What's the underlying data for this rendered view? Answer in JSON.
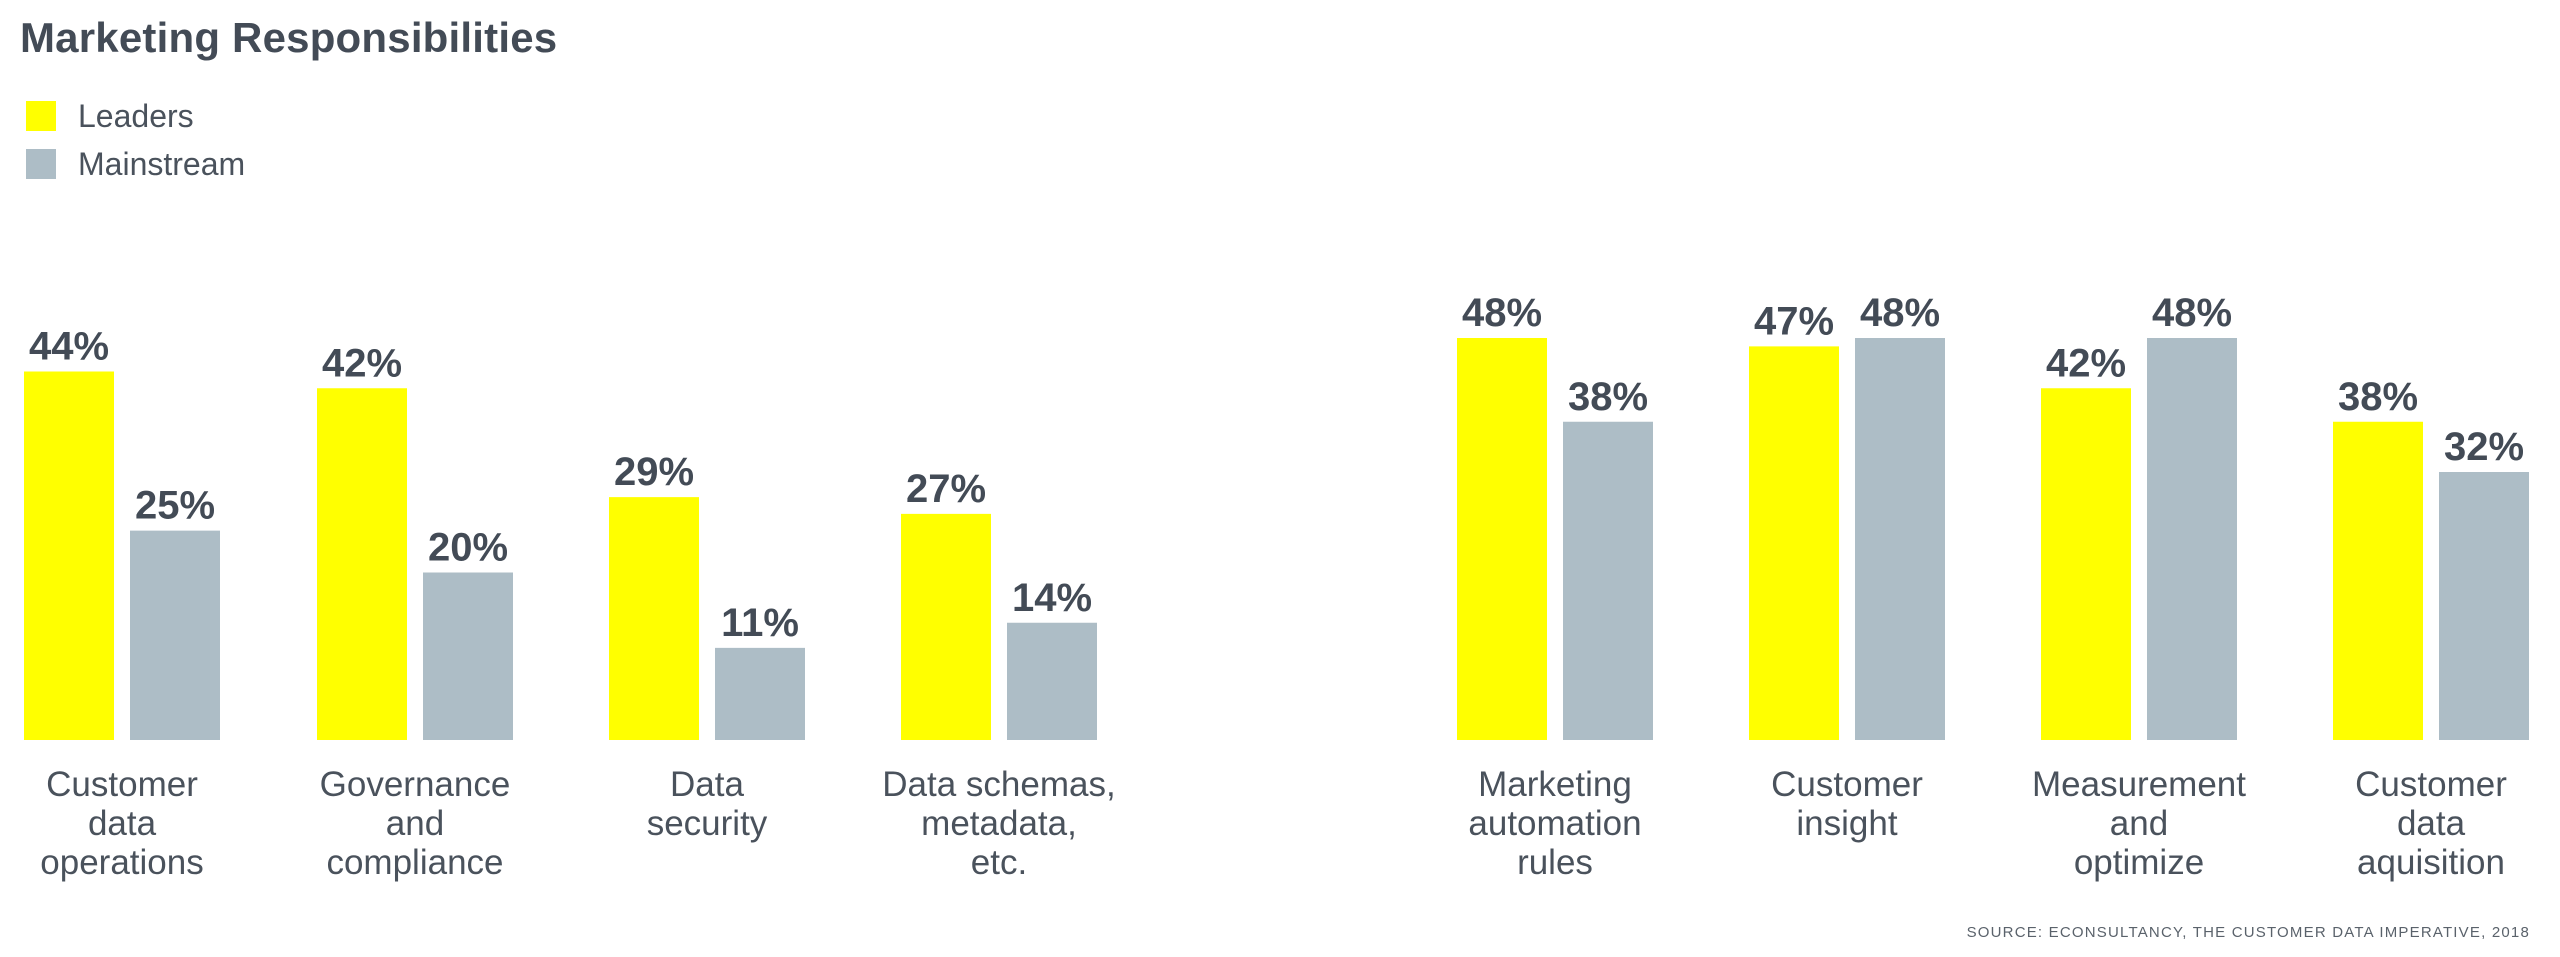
{
  "title": "Marketing Responsibilities",
  "source": "SOURCE: ECONSULTANCY, THE CUSTOMER DATA IMPERATIVE, 2018",
  "colors": {
    "leaders": "#ffff00",
    "mainstream": "#adbdc6",
    "text": "#434b56"
  },
  "legend": [
    {
      "label": "Leaders",
      "color": "#ffff00"
    },
    {
      "label": "Mainstream",
      "color": "#adbdc6"
    }
  ],
  "chart_data": {
    "type": "bar",
    "title": "Marketing Responsibilities",
    "ylim": [
      0,
      48
    ],
    "grid": false,
    "legend_position": "top-left",
    "categories": [
      [
        "Customer",
        "data",
        "operations"
      ],
      [
        "Governance",
        "and",
        "compliance"
      ],
      [
        "Data",
        "security"
      ],
      [
        "Data schemas,",
        "metadata,",
        "etc."
      ],
      [
        "Marketing",
        "automation",
        "rules"
      ],
      [
        "Customer",
        "insight"
      ],
      [
        "Measurement",
        "and",
        "optimize"
      ],
      [
        "Customer",
        "data",
        "aquisition"
      ]
    ],
    "series": [
      {
        "name": "Leaders",
        "values": [
          44,
          42,
          29,
          27,
          48,
          47,
          42,
          38
        ]
      },
      {
        "name": "Mainstream",
        "values": [
          25,
          20,
          11,
          14,
          38,
          48,
          48,
          32
        ]
      }
    ],
    "data_labels": [
      [
        "44%",
        "42%",
        "29%",
        "27%",
        "48%",
        "47%",
        "42%",
        "38%"
      ],
      [
        "25%",
        "20%",
        "11%",
        "14%",
        "38%",
        "48%",
        "48%",
        "32%"
      ]
    ]
  }
}
